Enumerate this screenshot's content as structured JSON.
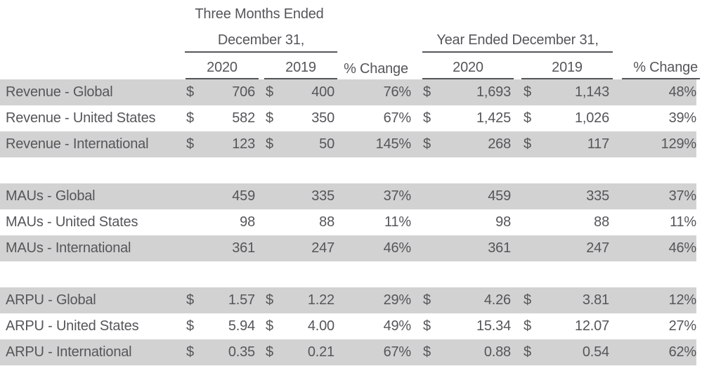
{
  "table": {
    "group_headers": {
      "three_months_line1": "Three Months Ended",
      "three_months_line2": "December 31,",
      "year_ended": "Year Ended December 31,"
    },
    "column_headers": {
      "tm_2020": "2020",
      "tm_2019": "2019",
      "tm_pct": "% Change",
      "yr_2020": "2020",
      "yr_2019": "2019",
      "yr_pct": "% Change"
    },
    "colors": {
      "row_shade": "#d2d2d2",
      "text": "#55565a"
    },
    "sections": [
      {
        "rows": [
          {
            "label": "Revenue - Global",
            "m1_d": "$",
            "m1_v": "706",
            "m2_d": "$",
            "m2_v": "400",
            "p1": "76%",
            "y1_d": "$",
            "y1_v": "1,693",
            "y2_d": "$",
            "y2_v": "1,143",
            "p2": "48%"
          },
          {
            "label": "Revenue - United States",
            "m1_d": "$",
            "m1_v": "582",
            "m2_d": "$",
            "m2_v": "350",
            "p1": "67%",
            "y1_d": "$",
            "y1_v": "1,425",
            "y2_d": "$",
            "y2_v": "1,026",
            "p2": "39%"
          },
          {
            "label": "Revenue - International",
            "m1_d": "$",
            "m1_v": "123",
            "m2_d": "$",
            "m2_v": "50",
            "p1": "145%",
            "y1_d": "$",
            "y1_v": "268",
            "y2_d": "$",
            "y2_v": "117",
            "p2": "129%"
          }
        ]
      },
      {
        "rows": [
          {
            "label": "MAUs - Global",
            "m1_d": "",
            "m1_v": "459",
            "m2_d": "",
            "m2_v": "335",
            "p1": "37%",
            "y1_d": "",
            "y1_v": "459",
            "y2_d": "",
            "y2_v": "335",
            "p2": "37%"
          },
          {
            "label": "MAUs - United States",
            "m1_d": "",
            "m1_v": "98",
            "m2_d": "",
            "m2_v": "88",
            "p1": "11%",
            "y1_d": "",
            "y1_v": "98",
            "y2_d": "",
            "y2_v": "88",
            "p2": "11%"
          },
          {
            "label": "MAUs - International",
            "m1_d": "",
            "m1_v": "361",
            "m2_d": "",
            "m2_v": "247",
            "p1": "46%",
            "y1_d": "",
            "y1_v": "361",
            "y2_d": "",
            "y2_v": "247",
            "p2": "46%"
          }
        ]
      },
      {
        "rows": [
          {
            "label": "ARPU - Global",
            "m1_d": "$",
            "m1_v": "1.57",
            "m2_d": "$",
            "m2_v": "1.22",
            "p1": "29%",
            "y1_d": "$",
            "y1_v": "4.26",
            "y2_d": "$",
            "y2_v": "3.81",
            "p2": "12%"
          },
          {
            "label": "ARPU - United States",
            "m1_d": "$",
            "m1_v": "5.94",
            "m2_d": "$",
            "m2_v": "4.00",
            "p1": "49%",
            "y1_d": "$",
            "y1_v": "15.34",
            "y2_d": "$",
            "y2_v": "12.07",
            "p2": "27%"
          },
          {
            "label": "ARPU - International",
            "m1_d": "$",
            "m1_v": "0.35",
            "m2_d": "$",
            "m2_v": "0.21",
            "p1": "67%",
            "y1_d": "$",
            "y1_v": "0.88",
            "y2_d": "$",
            "y2_v": "0.54",
            "p2": "62%"
          }
        ]
      }
    ]
  }
}
